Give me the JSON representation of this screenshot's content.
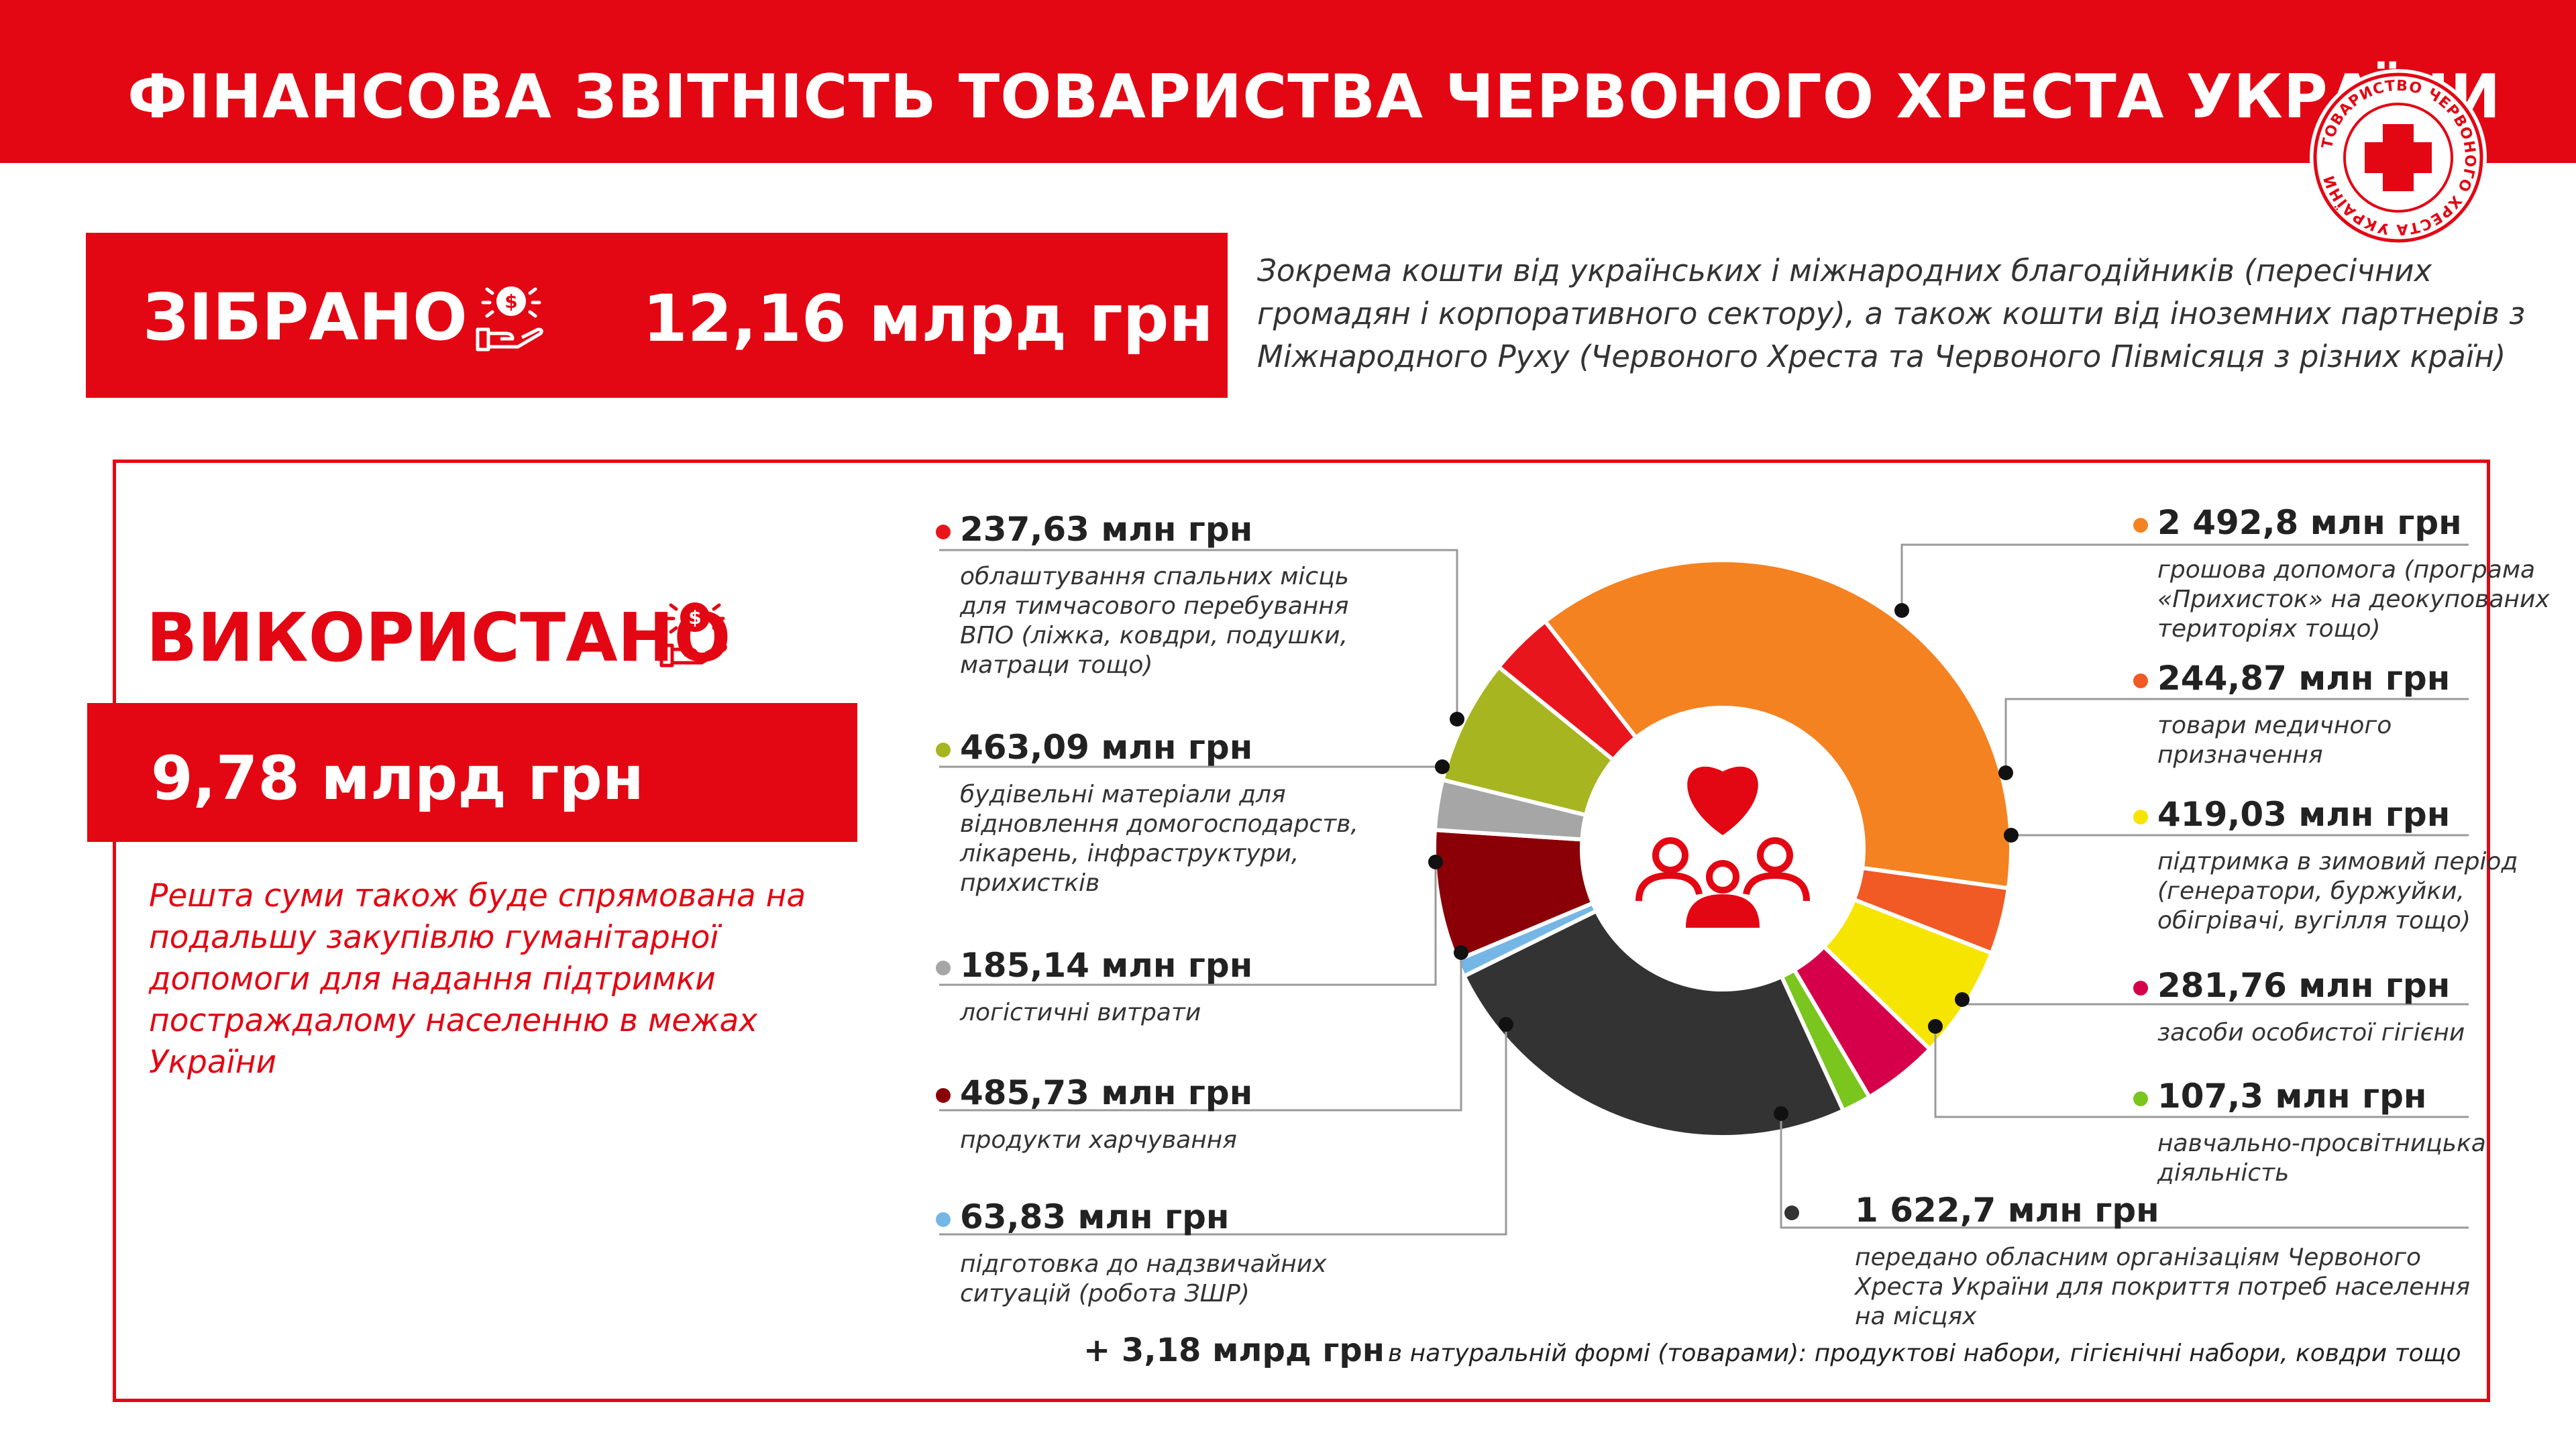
{
  "header": {
    "title": "ФІНАНСОВА ЗВІТНІСТЬ ТОВАРИСТВА ЧЕРВОНОГО ХРЕСТА УКРАЇНИ",
    "logo_text": "ТОВАРИСТВО ЧЕРВОНОГО ХРЕСТА УКРАЇНИ"
  },
  "collected": {
    "label": "ЗІБРАНО",
    "amount": "12,16 млрд грн",
    "description": "Зокрема кошти від українських і міжнародних благодійників (пересічних громадян і корпоративного сектору), а також кошти від іноземних партнерів з Міжнародного Руху (Червоного Хреста та Червоного Півмісяця з різних країн)",
    "icon": "money-in-hand-icon"
  },
  "used": {
    "label": "ВИКОРИСТАНО",
    "amount": "9,78 млрд грн",
    "rest_text": "Решта суми також буде спрямована на подальшу закупівлю гуманітарної допомоги для надання підтримки постраждалому населенню в межах України",
    "icon": "money-in-hand-icon"
  },
  "center_icon": "heart-people-icon",
  "footer": {
    "bold": "+ 3,18 млрд грн",
    "italic": "в натуральній формі (товарами): продуктові набори, гігієнічні набори, ковдри тощо"
  },
  "colors": {
    "brand_red": "#e30613"
  },
  "chart_data": {
    "type": "pie",
    "unit": "млн грн",
    "slices": [
      {
        "value": 2492.8,
        "label": "2 492,8 млн грн",
        "description": "грошова допомога (програма «Прихисток» на деокупованих територіях тощо)",
        "color": "#f58220"
      },
      {
        "value": 244.87,
        "label": "244,87 млн грн",
        "description": "товари медичного призначення",
        "color": "#f15a24"
      },
      {
        "value": 419.03,
        "label": "419,03 млн грн",
        "description": "підтримка в зимовий період (генератори, буржуйки, обігрівачі, вугілля тощо)",
        "color": "#f6e500"
      },
      {
        "value": 281.76,
        "label": "281,76 млн грн",
        "description": "засоби особистої гігієни",
        "color": "#d6004a"
      },
      {
        "value": 107.3,
        "label": "107,3 млн грн",
        "description": "навчально-просвітницька діяльність",
        "color": "#7ac51e"
      },
      {
        "value": 1622.7,
        "label": "1 622,7 млн грн",
        "description": "передано обласним організаціям Червоного Хреста України для покриття потреб населення на місцях",
        "color": "#333333"
      },
      {
        "value": 63.83,
        "label": "63,83 млн грн",
        "description": "підготовка до надзвичайних ситуацій (робота ЗШР)",
        "color": "#74b6e6"
      },
      {
        "value": 485.73,
        "label": "485,73 млн грн",
        "description": "продукти харчування",
        "color": "#8b0007"
      },
      {
        "value": 185.14,
        "label": "185,14 млн грн",
        "description": "логістичні витрати",
        "color": "#a6a6a6"
      },
      {
        "value": 463.09,
        "label": "463,09 млн грн",
        "description": "будівельні матеріали для відновлення домогосподарств, лікарень, інфраструктури, прихистків",
        "color": "#a6b520"
      },
      {
        "value": 237.63,
        "label": "237,63 млн грн",
        "description": "облаштування спальних місць для тимчасового перебування ВПО (ліжка, ковдри, подушки, матраци тощо)",
        "color": "#e8161c"
      }
    ]
  }
}
